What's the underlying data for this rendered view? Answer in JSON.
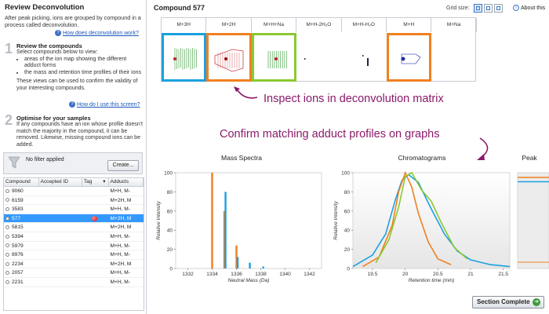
{
  "left": {
    "title": "Review Deconvolution",
    "intro": "After peak picking, ions are grouped by compound in a process called deconvolution.",
    "link1": "How does deconvolution work?",
    "step1": {
      "num": "1",
      "title": "Review the compounds",
      "lead": "Select compounds below to view:",
      "bullet1": "areas of the ion map showing the different adduct forms",
      "bullet2": "the mass and retention time profiles of their ions",
      "text": "These views can be used to confirm the validity of your interesting compounds.",
      "link": "How do I use this screen?"
    },
    "step2": {
      "num": "2",
      "title": "Optimise for your samples",
      "text": "If any compounds have an ion whose profile doesn't match the majority in the compound, it can be removed. Likewise, missing compound ions can be added."
    },
    "filter": {
      "text": "No filter applied",
      "create": "Create..."
    },
    "table": {
      "headers": [
        "Compound",
        "Accepted ID",
        "Tag",
        "Adducts"
      ],
      "rows": [
        {
          "compound": "9060",
          "adducts": "M+H, M-"
        },
        {
          "compound": "6159",
          "adducts": "M+2H, M"
        },
        {
          "compound": "3583",
          "adducts": "M+H, M-"
        },
        {
          "compound": "577",
          "adducts": "M+2H, M"
        },
        {
          "compound": "5815",
          "adducts": "M+2H, M"
        },
        {
          "compound": "5394",
          "adducts": "M+H, M-"
        },
        {
          "compound": "5979",
          "adducts": "M+H, M-"
        },
        {
          "compound": "8976",
          "adducts": "M+H, M-"
        },
        {
          "compound": "2234",
          "adducts": "M+2H, M"
        },
        {
          "compound": "2057",
          "adducts": "M+H, M-"
        },
        {
          "compound": "2231",
          "adducts": "M+H, M-"
        }
      ]
    }
  },
  "main": {
    "title": "Compound 577",
    "grid_size": "Grid size:",
    "about": "About this",
    "matrix_headers": [
      "M+3H",
      "M+2H",
      "M+H+Na",
      "M+H-2H₂O",
      "M+H-H₂O",
      "M+H",
      "M+Na"
    ],
    "highlight_colors": [
      "#1aa0e0",
      "#f08020",
      "#8ac832",
      "",
      "",
      "#f08020",
      ""
    ],
    "annotation1": "Inspect ions in deconvolution matrix",
    "annotation2": "Confirm matching adduct profiles on graphs",
    "section_complete": "Section Complete"
  },
  "chart_data": [
    {
      "type": "bar",
      "title": "Mass Spectra",
      "xlabel": "Neutral Mass (Da)",
      "ylabel": "Relative Intensity",
      "xlim": [
        1331,
        1343
      ],
      "ylim": [
        0,
        100
      ],
      "xticks": [
        1332,
        1334,
        1336,
        1338,
        1340,
        1342
      ],
      "yticks": [
        0,
        20,
        40,
        60,
        80,
        100
      ],
      "series": [
        {
          "color": "#f08020",
          "x": [
            1334.0,
            1335.0,
            1336.0
          ],
          "values": [
            100,
            60,
            24
          ]
        },
        {
          "color": "#1aa0e0",
          "x": [
            1335.1,
            1336.1,
            1337.1,
            1338.2
          ],
          "values": [
            80,
            12,
            6,
            2
          ]
        }
      ]
    },
    {
      "type": "line",
      "title": "Chromatograms",
      "xlabel": "Retention time (min)",
      "ylabel": "Relative Intensity",
      "xlim": [
        19.2,
        21.6
      ],
      "ylim": [
        0,
        100
      ],
      "xticks": [
        19.5,
        20,
        20.5,
        21,
        21.5
      ],
      "yticks": [
        0,
        20,
        40,
        60,
        80,
        100
      ],
      "series": [
        {
          "color": "#1aa0e0",
          "x": [
            19.2,
            19.5,
            19.7,
            19.85,
            19.95,
            20.05,
            20.2,
            20.4,
            20.6,
            20.8,
            21.0,
            21.3,
            21.6
          ],
          "values": [
            2,
            14,
            36,
            72,
            92,
            98,
            90,
            62,
            36,
            18,
            9,
            4,
            2
          ]
        },
        {
          "color": "#f08020",
          "x": [
            19.35,
            19.6,
            19.8,
            19.9,
            20.0,
            20.1,
            20.2,
            20.35,
            20.5,
            20.7
          ],
          "values": [
            2,
            12,
            45,
            80,
            100,
            85,
            58,
            28,
            10,
            4
          ]
        },
        {
          "color": "#8ac832",
          "x": [
            19.55,
            19.75,
            19.9,
            20.0,
            20.1,
            20.25,
            20.4,
            20.55,
            20.75,
            20.95
          ],
          "values": [
            6,
            30,
            64,
            96,
            100,
            82,
            70,
            48,
            22,
            10
          ]
        }
      ]
    },
    {
      "type": "line",
      "title": "Peak",
      "series": [
        {
          "color": "#f08020",
          "values": [
            100
          ]
        },
        {
          "color": "#1aa0e0",
          "values": [
            95
          ]
        }
      ]
    }
  ]
}
